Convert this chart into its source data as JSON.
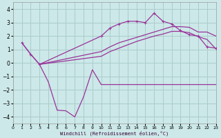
{
  "xlabel": "Windchill (Refroidissement éolien,°C)",
  "bg_color": "#cce8e8",
  "grid_color": "#aacccc",
  "line_color": "#993399",
  "xlim": [
    0,
    23
  ],
  "ylim": [
    -4.5,
    4.5
  ],
  "yticks": [
    -4,
    -3,
    -2,
    -1,
    0,
    1,
    2,
    3,
    4
  ],
  "xticks": [
    0,
    1,
    2,
    3,
    4,
    5,
    6,
    7,
    8,
    9,
    10,
    11,
    12,
    13,
    14,
    15,
    16,
    17,
    18,
    19,
    20,
    21,
    22,
    23
  ],
  "line1_x": [
    1,
    2,
    3,
    4,
    5,
    6,
    7,
    8,
    9,
    10,
    11,
    12,
    13,
    14,
    15,
    16,
    17,
    18,
    19,
    20,
    21,
    22,
    23
  ],
  "line1_y": [
    1.5,
    0.65,
    -0.1,
    -1.4,
    -3.5,
    -3.55,
    -4.0,
    -2.5,
    -0.5,
    -1.6,
    -1.6,
    -1.6,
    -1.6,
    -1.6,
    -1.6,
    -1.6,
    -1.6,
    -1.6,
    -1.6,
    -1.6,
    -1.6,
    -1.6,
    -1.6
  ],
  "line2_x": [
    1,
    2,
    3,
    10,
    11,
    12,
    13,
    14,
    15,
    16,
    17,
    18,
    19,
    20,
    21,
    22,
    23
  ],
  "line2_y": [
    1.5,
    0.65,
    -0.1,
    2.0,
    2.6,
    2.9,
    3.1,
    3.1,
    3.0,
    3.7,
    3.1,
    2.9,
    2.4,
    2.1,
    2.0,
    1.2,
    1.1
  ],
  "line3_x": [
    3,
    10,
    11,
    12,
    13,
    14,
    15,
    16,
    17,
    18,
    19,
    20,
    21,
    22,
    23
  ],
  "line3_y": [
    -0.1,
    0.85,
    1.2,
    1.5,
    1.7,
    1.9,
    2.1,
    2.3,
    2.5,
    2.7,
    2.7,
    2.65,
    2.3,
    2.3,
    2.0
  ],
  "line4_x": [
    3,
    10,
    11,
    12,
    13,
    14,
    15,
    16,
    17,
    18,
    19,
    20,
    21,
    22,
    23
  ],
  "line4_y": [
    -0.1,
    0.5,
    0.85,
    1.1,
    1.35,
    1.6,
    1.8,
    2.0,
    2.15,
    2.35,
    2.35,
    2.25,
    1.95,
    1.75,
    1.05
  ]
}
